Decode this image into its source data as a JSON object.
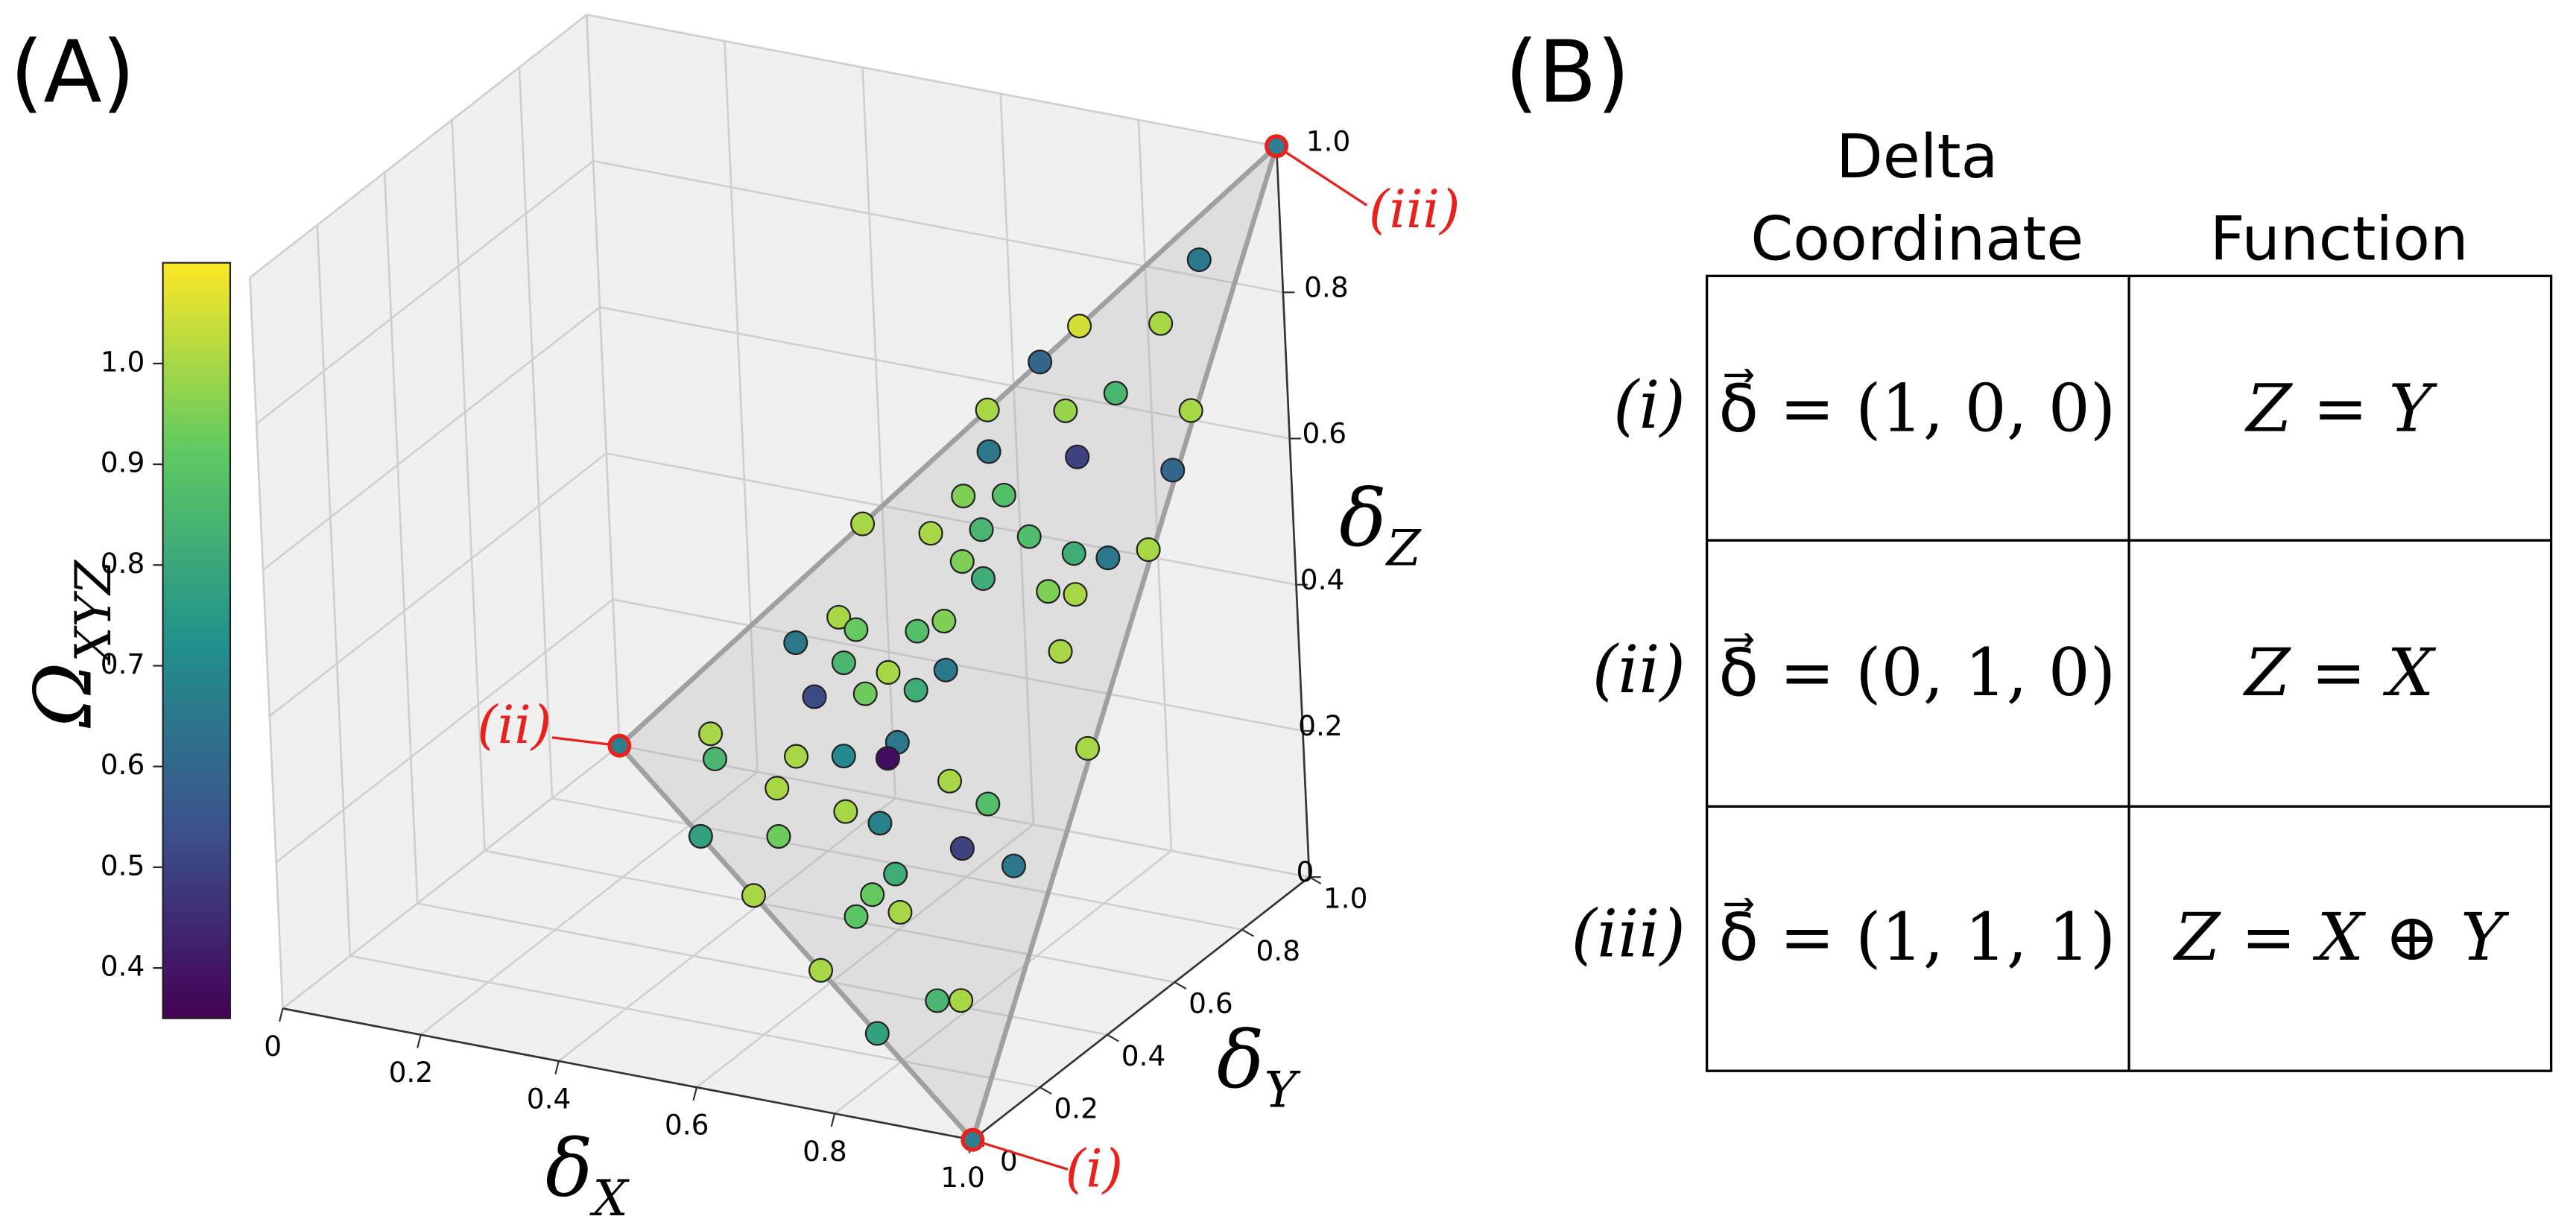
{
  "panel_labels": [
    "(A)",
    "(B)"
  ],
  "chart_data": {
    "type": "scatter3d",
    "xlabel": [
      "δ",
      "X"
    ],
    "ylabel": [
      "δ",
      "Y"
    ],
    "zlabel": [
      "δ",
      "Z"
    ],
    "colorbar_label": [
      "Ω",
      "XYZ"
    ],
    "xlim": [
      0,
      1
    ],
    "ylim": [
      0,
      1
    ],
    "zlim": [
      0,
      1
    ],
    "xticks": [
      0,
      0.2,
      0.4,
      0.6,
      0.8,
      {
        "value": 1,
        "label": "1.0"
      }
    ],
    "yticks": [
      0,
      0.2,
      0.4,
      0.6,
      0.8,
      {
        "value": 1,
        "label": "1.0"
      }
    ],
    "zticks": [
      0,
      0.2,
      0.4,
      0.6,
      0.8,
      {
        "value": 1,
        "label": "1.0"
      }
    ],
    "clim": [
      0.35,
      1.1
    ],
    "cticks": [
      0.4,
      0.5,
      0.6,
      0.7,
      0.8,
      0.9,
      {
        "value": 1,
        "label": "1.0"
      }
    ],
    "colormap": "viridis",
    "grid": true,
    "x": [
      0.91,
      0.7,
      0.87,
      0.64,
      0.82,
      0.56,
      0.72,
      0.99,
      0.59,
      0.78,
      0.99,
      0.57,
      0.65,
      0.37,
      0.52,
      0.63,
      0.73,
      0.83,
      0.99,
      0.91,
      0.61,
      0.66,
      0.8,
      0.87,
      0.3,
      0.38,
      0.61,
      0.43,
      0.56,
      0.87,
      0.42,
      0.52,
      0.64,
      0.38,
      0.48,
      0.59,
      0.19,
      0.59,
      0.58,
      0.21,
      0.38,
      0.48,
      0.72,
      0.36,
      0.52,
      0.6,
      0.81,
      0.23,
      0.4,
      0.66,
      0.79,
      0.91,
      0.38,
      0.63,
      0.7,
      0.61,
      0.99,
      0.57,
      0.83,
      0.88,
      0.73
    ],
    "y": [
      0.94,
      1.0,
      0.9,
      1.0,
      0.86,
      1.0,
      0.91,
      0.74,
      0.94,
      0.82,
      0.68,
      0.9,
      0.86,
      1.0,
      0.9,
      0.83,
      0.77,
      0.7,
      0.6,
      0.64,
      0.81,
      0.77,
      0.68,
      0.62,
      0.93,
      0.9,
      0.75,
      0.85,
      0.77,
      0.57,
      0.83,
      0.76,
      0.69,
      0.82,
      0.77,
      0.7,
      0.89,
      0.64,
      0.63,
      0.86,
      0.76,
      0.7,
      0.53,
      0.74,
      0.62,
      0.56,
      0.46,
      0.77,
      0.66,
      0.48,
      0.42,
      0.33,
      0.62,
      0.47,
      0.41,
      0.46,
      0.4,
      0.43,
      0.25,
      0.22,
      0.27
    ],
    "z": [
      0.85,
      0.7,
      0.77,
      0.64,
      0.68,
      0.56,
      0.62,
      0.73,
      0.53,
      0.6,
      0.67,
      0.48,
      0.51,
      0.37,
      0.42,
      0.47,
      0.5,
      0.52,
      0.59,
      0.55,
      0.43,
      0.43,
      0.47,
      0.5,
      0.22,
      0.28,
      0.37,
      0.29,
      0.34,
      0.44,
      0.25,
      0.28,
      0.33,
      0.2,
      0.24,
      0.29,
      0.09,
      0.24,
      0.22,
      0.07,
      0.14,
      0.18,
      0.25,
      0.1,
      0.14,
      0.16,
      0.26,
      0,
      0.07,
      0.13,
      0.21,
      0.24,
      0,
      0.1,
      0.11,
      0.07,
      0.39,
      0,
      0.07,
      0.09,
      0
    ],
    "c": [
      0.65,
      1.05,
      1.0,
      0.6,
      0.85,
      1.0,
      0.98,
      1.0,
      0.65,
      0.5,
      0.6,
      0.95,
      0.88,
      1.0,
      1.0,
      0.85,
      0.87,
      0.82,
      1.0,
      0.65,
      0.95,
      0.82,
      0.95,
      1.0,
      0.65,
      1.0,
      0.95,
      0.92,
      0.88,
      1.0,
      0.85,
      1.0,
      0.65,
      0.52,
      0.93,
      0.82,
      1.0,
      0.65,
      0.38,
      0.85,
      1.0,
      0.7,
      1.0,
      1.0,
      1.0,
      0.68,
      0.88,
      0.78,
      0.93,
      0.82,
      0.5,
      0.65,
      1.0,
      0.92,
      1.0,
      0.9,
      1.0,
      1.0,
      0.85,
      1.0,
      0.78
    ],
    "plane_color": "#a0a0a0",
    "annotations": [
      {
        "text": "(i)",
        "x": 1,
        "y": 0,
        "z": 0
      },
      {
        "text": "(ii)",
        "x": 0,
        "y": 1,
        "z": 0
      },
      {
        "text": "(iii)",
        "x": 1,
        "y": 1,
        "z": 1
      }
    ],
    "annotation_color": "#e8211c"
  },
  "table": {
    "header": {
      "coordinate": [
        "Delta",
        "Coordinate"
      ],
      "function": "Function"
    },
    "rows": [
      {
        "label": "(i)",
        "coordinate": "δ⃗ = (1, 0, 0)",
        "function": "Z = Y"
      },
      {
        "label": "(ii)",
        "coordinate": "δ⃗ = (0, 1, 0)",
        "function": "Z = X"
      },
      {
        "label": "(iii)",
        "coordinate": "δ⃗ = (1, 1, 1)",
        "function": "Z = X ⊕ Y"
      }
    ]
  }
}
